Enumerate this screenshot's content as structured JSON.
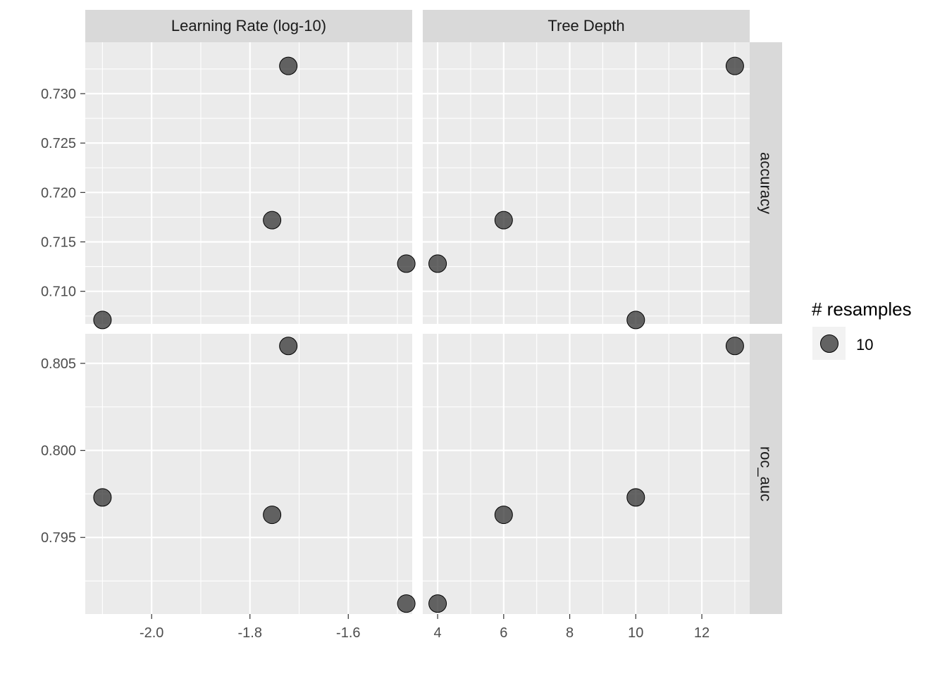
{
  "chart_data": {
    "type": "scatter",
    "title": "",
    "xlabel": "",
    "ylabel": "",
    "grid": true,
    "legend_position": "right",
    "point_color": "#333333",
    "point_opacity": 0.75,
    "panel_background": "#ebebeb",
    "strip_background": "#d9d9d9",
    "columns": [
      {
        "label": "Learning Rate (log-10)",
        "xlim": [
          -2.135,
          -1.47
        ],
        "ticks": [
          -2.0,
          -1.8,
          -1.6
        ],
        "tick_labels": [
          "-2.0",
          "-1.8",
          "-1.6"
        ]
      },
      {
        "label": "Tree Depth",
        "xlim": [
          3.55,
          13.45
        ],
        "ticks": [
          4,
          6,
          8,
          10,
          12
        ],
        "tick_labels": [
          "4",
          "6",
          "8",
          "10",
          "12"
        ]
      }
    ],
    "rows": [
      {
        "label": "accuracy",
        "ylim": [
          0.7067,
          0.7352
        ],
        "ticks": [
          0.71,
          0.715,
          0.72,
          0.725,
          0.73
        ],
        "tick_labels": [
          "0.710",
          "0.715",
          "0.720",
          "0.725",
          "0.730"
        ]
      },
      {
        "label": "roc_auc",
        "ylim": [
          0.7906,
          0.8067
        ],
        "ticks": [
          0.795,
          0.8,
          0.805
        ],
        "tick_labels": [
          "0.795",
          "0.800",
          "0.805"
        ]
      }
    ],
    "points": [
      {
        "learn_rate_log10": -2.1,
        "tree_depth": 10,
        "accuracy": 0.7071,
        "roc_auc": 0.7973
      },
      {
        "learn_rate_log10": -1.755,
        "tree_depth": 6,
        "accuracy": 0.7172,
        "roc_auc": 0.7963
      },
      {
        "learn_rate_log10": -1.722,
        "tree_depth": 13,
        "accuracy": 0.7328,
        "roc_auc": 0.806
      },
      {
        "learn_rate_log10": -1.482,
        "tree_depth": 4,
        "accuracy": 0.7128,
        "roc_auc": 0.7912
      }
    ],
    "legend": {
      "title": "# resamples",
      "items": [
        {
          "label": "10"
        }
      ]
    }
  }
}
